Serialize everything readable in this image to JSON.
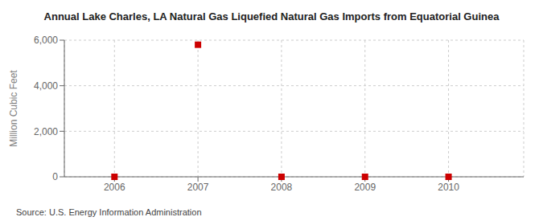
{
  "chart_data": {
    "type": "scatter",
    "title": "Annual Lake Charles, LA Natural Gas Liquefied Natural Gas Imports from Equatorial Guinea",
    "ylabel": "Million Cubic Feet",
    "source": "Source: U.S. Energy Information Administration",
    "x": [
      2006,
      2007,
      2008,
      2009,
      2010
    ],
    "values": [
      0,
      5800,
      0,
      0,
      0
    ],
    "color": "#cc0000",
    "marker": "square",
    "xlim": [
      2005.4,
      2010.9
    ],
    "xticks": [
      2006,
      2007,
      2008,
      2009,
      2010
    ],
    "ylim": [
      0,
      6000
    ],
    "yticks": [
      0,
      {
        "value": 2000,
        "label": "2,000"
      },
      {
        "value": 4000,
        "label": "4,000"
      },
      {
        "value": 6000,
        "label": "6,000"
      }
    ],
    "grid": true
  }
}
